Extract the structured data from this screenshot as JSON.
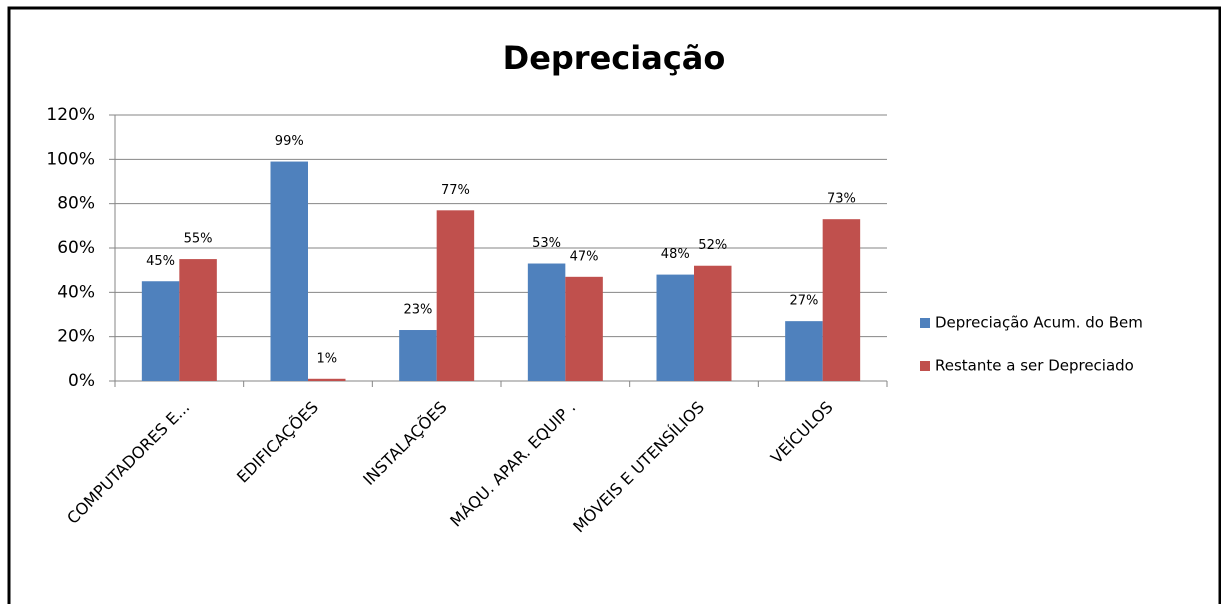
{
  "chart_data": {
    "type": "bar",
    "title": "Depreciação",
    "categories": [
      "COMPUTADORES E...",
      "EDIFICAÇÕES",
      "INSTALAÇÕES",
      "MÁQU. APAR. EQUIP .",
      "MÓVEIS E UTENSÍLIOS",
      "VEÍCULOS"
    ],
    "series": [
      {
        "name": "Depreciação Acum. do Bem",
        "color": "#4f81bd",
        "values": [
          45,
          99,
          23,
          53,
          48,
          27
        ],
        "value_labels": [
          "45%",
          "99%",
          "23%",
          "53%",
          "48%",
          "27%"
        ]
      },
      {
        "name": "Restante a ser Depreciado",
        "color": "#c0504d",
        "values": [
          55,
          1,
          77,
          47,
          52,
          73
        ],
        "value_labels": [
          "55%",
          "1%",
          "77%",
          "47%",
          "52%",
          "73%"
        ]
      }
    ],
    "ylim": [
      0,
      120
    ],
    "yticks": [
      {
        "value": 0,
        "label": "0%"
      },
      {
        "value": 20,
        "label": "20%"
      },
      {
        "value": 40,
        "label": "40%"
      },
      {
        "value": 60,
        "label": "60%"
      },
      {
        "value": 80,
        "label": "80%"
      },
      {
        "value": 100,
        "label": "100%"
      },
      {
        "value": 120,
        "label": "120%"
      }
    ],
    "grid": true,
    "legend": "right"
  }
}
